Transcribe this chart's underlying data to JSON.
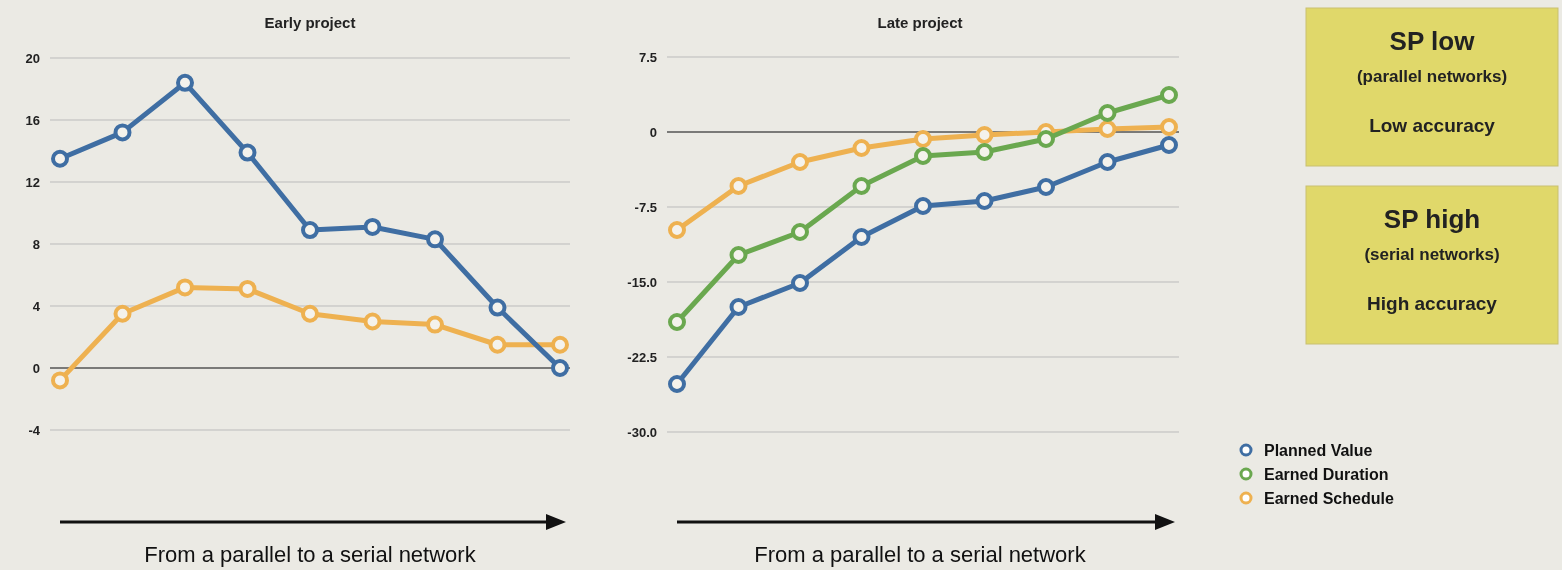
{
  "chart_data": [
    {
      "type": "line",
      "title": "Early project",
      "xlabel": "From a parallel to a serial network",
      "categories": [
        null,
        null,
        null,
        null,
        null,
        null,
        null,
        null,
        null
      ],
      "series": [
        {
          "color": "#3f6ea3",
          "values": [
            13.5,
            15.2,
            18.4,
            13.9,
            8.9,
            9.1,
            8.3,
            3.9,
            0
          ]
        },
        {
          "color": "#eeb150",
          "values": [
            -0.8,
            3.5,
            5.2,
            5.1,
            3.5,
            3.0,
            2.8,
            1.5,
            1.5
          ]
        }
      ],
      "ylim": [
        -4,
        20
      ],
      "yticks": [
        -4,
        0,
        4,
        8,
        12,
        16,
        20
      ],
      "grid": "y",
      "marker": "circle",
      "line_style": "solid",
      "legend": false
    },
    {
      "type": "line",
      "title": "Late project",
      "xlabel": "From a parallel to a serial network",
      "categories": [
        null,
        null,
        null,
        null,
        null,
        null,
        null,
        null,
        null
      ],
      "series": [
        {
          "name": "Planned Value",
          "color": "#3f6ea3",
          "values": [
            -25.2,
            -17.5,
            -15.1,
            -10.5,
            -7.4,
            -6.9,
            -5.5,
            -3.0,
            -1.3
          ]
        },
        {
          "name": "Earned Duration",
          "color": "#6aa84f",
          "values": [
            -19.0,
            -12.3,
            -10.0,
            -5.4,
            -2.4,
            -2.0,
            -0.7,
            1.9,
            3.7
          ]
        },
        {
          "name": "Earned Schedule",
          "color": "#eeb150",
          "values": [
            -9.8,
            -5.4,
            -3.0,
            -1.6,
            -0.7,
            -0.3,
            0,
            0.3,
            0.5
          ]
        }
      ],
      "ylim": [
        -30,
        7.5
      ],
      "yticks": [
        {
          "value": -30,
          "label": "-30.0"
        },
        {
          "value": -22.5,
          "label": "-22.5"
        },
        {
          "value": -15,
          "label": "-15.0"
        },
        {
          "value": -7.5,
          "label": "-7.5"
        },
        0,
        7.5
      ],
      "grid": "y",
      "marker": "circle",
      "line_style": "solid",
      "legend": "bottom right"
    },
    {
      "type": "other",
      "annotations": [
        "SP low",
        "(parallel networks)",
        "Low accuracy",
        "SP high",
        "(serial networks)",
        "High accuracy"
      ]
    }
  ]
}
